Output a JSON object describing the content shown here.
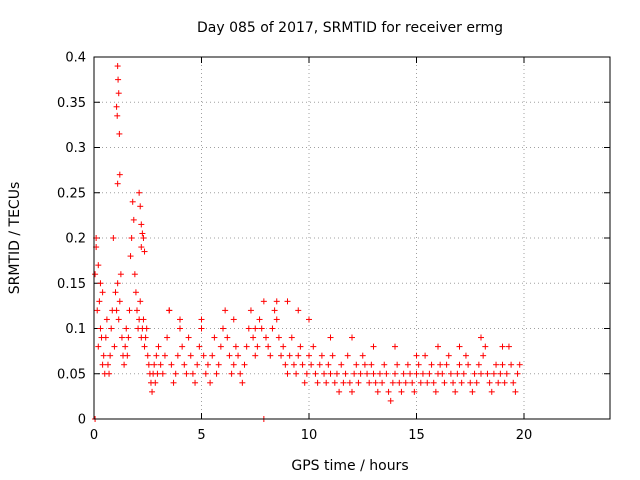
{
  "chart_data": {
    "type": "scatter",
    "title": "Day 085 of 2017, SRMTID for receiver ermg",
    "xlabel": "GPS time / hours",
    "ylabel": "SRMTID / TECUs",
    "xlim": [
      0,
      24
    ],
    "ylim": [
      0,
      0.4
    ],
    "xticks": [
      0,
      5,
      10,
      15,
      20
    ],
    "xtick_labels": [
      "0",
      "5",
      "10",
      "15",
      "20"
    ],
    "yticks": [
      0,
      0.05,
      0.1,
      0.15,
      0.2,
      0.25,
      0.3,
      0.35,
      0.4
    ],
    "ytick_labels": [
      "0",
      "0.05",
      "0.1",
      "0.15",
      "0.2",
      "0.25",
      "0.3",
      "0.35",
      "0.4"
    ],
    "grid": true,
    "legend": "none",
    "marker": "plus",
    "marker_color": "#ff0000",
    "series": [
      {
        "name": "SRMTID",
        "x": [
          0.05,
          0.1,
          0.15,
          0.2,
          0.25,
          0.3,
          0.35,
          0.4,
          0.45,
          0.5,
          0.55,
          0.6,
          0.65,
          0.7,
          0.75,
          0.8,
          0.85,
          0.9,
          0.95,
          1.0,
          1.05,
          1.1,
          1.15,
          1.2,
          1.25,
          1.3,
          1.35,
          1.4,
          1.45,
          1.5,
          1.55,
          1.6,
          1.65,
          1.7,
          1.75,
          1.8,
          1.85,
          1.9,
          1.95,
          2.0,
          2.05,
          2.1,
          2.15,
          2.2,
          2.25,
          2.3,
          2.35,
          2.4,
          2.45,
          2.5,
          2.55,
          2.6,
          2.65,
          2.7,
          2.75,
          2.8,
          2.85,
          2.9,
          2.95,
          3.0,
          3.1,
          3.2,
          3.3,
          3.4,
          3.5,
          3.6,
          3.7,
          3.8,
          3.9,
          4.0,
          4.1,
          4.2,
          4.3,
          4.4,
          4.5,
          4.6,
          4.7,
          4.8,
          4.9,
          5.0,
          5.1,
          5.2,
          5.3,
          5.4,
          5.5,
          5.6,
          5.7,
          5.8,
          5.9,
          6.0,
          6.1,
          6.2,
          6.3,
          6.4,
          6.5,
          6.6,
          6.7,
          6.8,
          6.9,
          7.0,
          7.1,
          7.2,
          7.3,
          7.4,
          7.5,
          7.6,
          7.7,
          7.8,
          7.9,
          8.0,
          8.1,
          8.2,
          8.3,
          8.4,
          8.5,
          8.6,
          8.7,
          8.8,
          8.9,
          9.0,
          9.1,
          9.2,
          9.3,
          9.4,
          9.5,
          9.6,
          9.7,
          9.8,
          9.9,
          10.0,
          10.1,
          10.2,
          10.3,
          10.4,
          10.5,
          10.6,
          10.7,
          10.8,
          10.9,
          11.0,
          11.1,
          11.2,
          11.3,
          11.4,
          11.5,
          11.6,
          11.7,
          11.8,
          11.9,
          12.0,
          12.1,
          12.2,
          12.3,
          12.4,
          12.5,
          12.6,
          12.7,
          12.8,
          12.9,
          13.0,
          13.1,
          13.2,
          13.3,
          13.4,
          13.5,
          13.6,
          13.7,
          13.8,
          13.9,
          14.0,
          14.1,
          14.2,
          14.3,
          14.4,
          14.5,
          14.6,
          14.7,
          14.8,
          14.9,
          15.0,
          15.1,
          15.2,
          15.3,
          15.4,
          15.5,
          15.6,
          15.7,
          15.8,
          15.9,
          16.0,
          16.1,
          16.2,
          16.3,
          16.4,
          16.5,
          16.6,
          16.7,
          16.8,
          16.9,
          17.0,
          17.1,
          17.2,
          17.3,
          17.4,
          17.5,
          17.6,
          17.7,
          17.8,
          17.9,
          18.0,
          18.1,
          18.2,
          18.3,
          18.4,
          18.5,
          18.6,
          18.7,
          18.8,
          18.9,
          19.0,
          19.1,
          19.2,
          19.3,
          19.4,
          19.5,
          19.6,
          19.7,
          19.8,
          0.1,
          0.2,
          0.3,
          0.4,
          1.1,
          1.12,
          1.15,
          1.05,
          1.08,
          1.18,
          1.2,
          1.1,
          2.1,
          2.15,
          2.2,
          2.25,
          2.3,
          2.2,
          2.35,
          3.5,
          4.0,
          5.0,
          6.5,
          7.5,
          8.5,
          9.0,
          9.5,
          10.0,
          11.0,
          12.0,
          13.0,
          14.0,
          15.0,
          16.0,
          17.0,
          18.0,
          19.0,
          0.05,
          7.9
        ],
        "y": [
          0.16,
          0.19,
          0.12,
          0.08,
          0.13,
          0.1,
          0.09,
          0.06,
          0.07,
          0.05,
          0.09,
          0.11,
          0.06,
          0.05,
          0.07,
          0.1,
          0.12,
          0.2,
          0.08,
          0.14,
          0.12,
          0.15,
          0.11,
          0.13,
          0.16,
          0.09,
          0.07,
          0.06,
          0.08,
          0.1,
          0.07,
          0.09,
          0.12,
          0.18,
          0.2,
          0.24,
          0.22,
          0.16,
          0.14,
          0.12,
          0.1,
          0.11,
          0.13,
          0.09,
          0.1,
          0.11,
          0.08,
          0.09,
          0.1,
          0.07,
          0.06,
          0.05,
          0.04,
          0.03,
          0.05,
          0.06,
          0.04,
          0.07,
          0.05,
          0.08,
          0.06,
          0.05,
          0.07,
          0.09,
          0.12,
          0.06,
          0.04,
          0.05,
          0.07,
          0.1,
          0.08,
          0.06,
          0.05,
          0.09,
          0.07,
          0.05,
          0.04,
          0.06,
          0.08,
          0.11,
          0.07,
          0.05,
          0.06,
          0.04,
          0.07,
          0.09,
          0.05,
          0.06,
          0.08,
          0.1,
          0.12,
          0.09,
          0.07,
          0.05,
          0.06,
          0.08,
          0.07,
          0.05,
          0.04,
          0.06,
          0.08,
          0.1,
          0.12,
          0.09,
          0.07,
          0.08,
          0.11,
          0.1,
          0.13,
          0.09,
          0.08,
          0.07,
          0.1,
          0.12,
          0.11,
          0.09,
          0.07,
          0.08,
          0.06,
          0.05,
          0.07,
          0.09,
          0.06,
          0.05,
          0.07,
          0.08,
          0.06,
          0.04,
          0.05,
          0.07,
          0.06,
          0.08,
          0.05,
          0.04,
          0.06,
          0.07,
          0.05,
          0.04,
          0.06,
          0.05,
          0.07,
          0.04,
          0.05,
          0.03,
          0.06,
          0.04,
          0.05,
          0.07,
          0.04,
          0.03,
          0.05,
          0.06,
          0.04,
          0.05,
          0.07,
          0.06,
          0.05,
          0.04,
          0.06,
          0.05,
          0.04,
          0.03,
          0.05,
          0.04,
          0.06,
          0.05,
          0.03,
          0.02,
          0.04,
          0.05,
          0.06,
          0.04,
          0.03,
          0.05,
          0.04,
          0.06,
          0.05,
          0.04,
          0.03,
          0.05,
          0.06,
          0.04,
          0.05,
          0.07,
          0.04,
          0.05,
          0.06,
          0.04,
          0.03,
          0.05,
          0.06,
          0.05,
          0.04,
          0.06,
          0.07,
          0.05,
          0.04,
          0.03,
          0.05,
          0.06,
          0.04,
          0.05,
          0.07,
          0.06,
          0.04,
          0.03,
          0.05,
          0.04,
          0.06,
          0.05,
          0.07,
          0.08,
          0.05,
          0.04,
          0.03,
          0.05,
          0.06,
          0.04,
          0.05,
          0.06,
          0.04,
          0.05,
          0.08,
          0.06,
          0.04,
          0.03,
          0.05,
          0.06,
          0.2,
          0.17,
          0.15,
          0.14,
          0.39,
          0.375,
          0.36,
          0.345,
          0.335,
          0.315,
          0.27,
          0.26,
          0.25,
          0.235,
          0.215,
          0.205,
          0.2,
          0.19,
          0.185,
          0.12,
          0.11,
          0.1,
          0.11,
          0.1,
          0.13,
          0.13,
          0.12,
          0.11,
          0.09,
          0.09,
          0.08,
          0.08,
          0.07,
          0.08,
          0.08,
          0.09,
          0.08,
          0.0,
          0.0
        ]
      }
    ]
  }
}
